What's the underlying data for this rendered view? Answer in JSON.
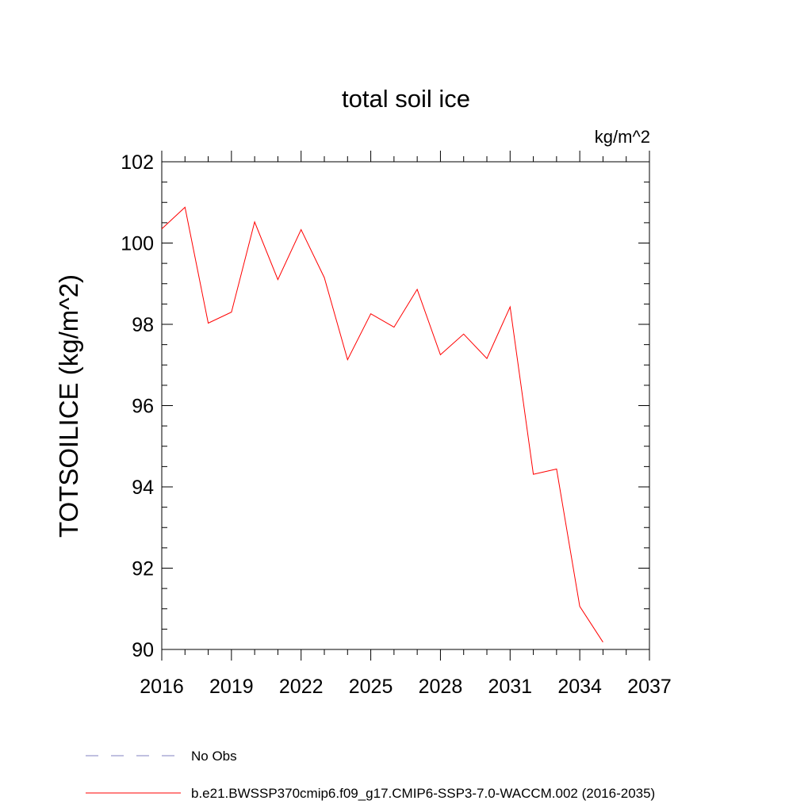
{
  "chart_data": {
    "type": "line",
    "title": "total soil ice",
    "units": "kg/m^2",
    "ylabel": "TOTSOILICE  (kg/m^2)",
    "xlabel": "",
    "xlim": [
      2016,
      2037
    ],
    "ylim": [
      90,
      102
    ],
    "x_ticks": [
      2016,
      2019,
      2022,
      2025,
      2028,
      2031,
      2034,
      2037
    ],
    "y_ticks": [
      90,
      92,
      94,
      96,
      98,
      100,
      102
    ],
    "y_minor_step": 0.5,
    "x_minor_step": 1,
    "grid": false,
    "x": [
      2016,
      2017,
      2018,
      2019,
      2020,
      2021,
      2022,
      2023,
      2024,
      2025,
      2026,
      2027,
      2028,
      2029,
      2030,
      2031,
      2032,
      2033,
      2034,
      2035
    ],
    "series": [
      {
        "name": "b.e21.BWSSP370cmip6.f09_g17.CMIP6-SSP3-7.0-WACCM.002 (2016-2035)",
        "color": "#ff0000",
        "style": "solid",
        "values": [
          100.35,
          100.88,
          98.03,
          98.3,
          100.52,
          99.1,
          100.33,
          99.15,
          97.13,
          98.26,
          97.93,
          98.86,
          97.25,
          97.76,
          97.16,
          98.43,
          94.31,
          94.44,
          91.06,
          90.18
        ]
      }
    ],
    "legend": {
      "placement": "bottom",
      "entries": [
        {
          "label": "No Obs",
          "color": "#8080c0",
          "style": "dashed"
        },
        {
          "label": "b.e21.BWSSP370cmip6.f09_g17.CMIP6-SSP3-7.0-WACCM.002 (2016-2035)",
          "color": "#ff0000",
          "style": "solid"
        }
      ]
    }
  }
}
